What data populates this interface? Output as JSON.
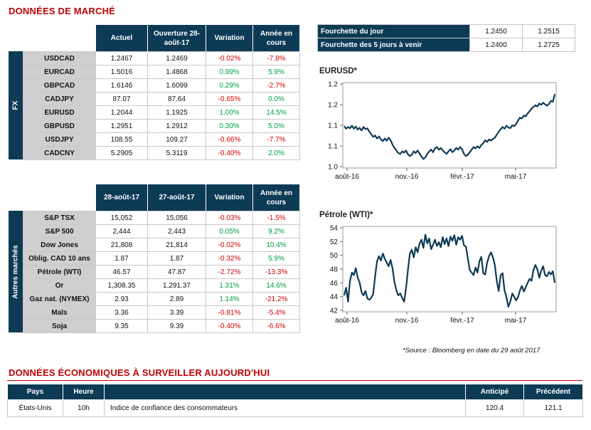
{
  "market_title": "DONNÉES DE MARCHÉ",
  "fx": {
    "side_label": "FX",
    "headers": [
      "Actuel",
      "Ouverture 28-août-17",
      "Variation",
      "Année en cours"
    ],
    "rows": [
      {
        "name": "USDCAD",
        "current": "1.2467",
        "open": "1.2469",
        "change": "-0.02%",
        "ytd": "-7.8%"
      },
      {
        "name": "EURCAD",
        "current": "1.5016",
        "open": "1.4868",
        "change": "0.99%",
        "ytd": "5.9%"
      },
      {
        "name": "GBPCAD",
        "current": "1.6146",
        "open": "1.6099",
        "change": "0.29%",
        "ytd": "-2.7%"
      },
      {
        "name": "CADJPY",
        "current": "87.07",
        "open": "87.64",
        "change": "-0.65%",
        "ytd": "0.0%"
      },
      {
        "name": "EURUSD",
        "current": "1.2044",
        "open": "1.1925",
        "change": "1.00%",
        "ytd": "14.5%"
      },
      {
        "name": "GBPUSD",
        "current": "1.2951",
        "open": "1.2912",
        "change": "0.30%",
        "ytd": "5.0%"
      },
      {
        "name": "USDJPY",
        "current": "108.55",
        "open": "109.27",
        "change": "-0.66%",
        "ytd": "-7.7%"
      },
      {
        "name": "CADCNY",
        "current": "5.2905",
        "open": "5.3119",
        "change": "-0.40%",
        "ytd": "2.0%"
      }
    ]
  },
  "other": {
    "side_label": "Autres marchés",
    "headers": [
      "28-août-17",
      "27-août-17",
      "Variation",
      "Année en cours"
    ],
    "rows": [
      {
        "name": "S&P TSX",
        "current": "15,052",
        "open": "15,056",
        "change": "-0.03%",
        "ytd": "-1.5%"
      },
      {
        "name": "S&P 500",
        "current": "2,444",
        "open": "2,443",
        "change": "0.05%",
        "ytd": "9.2%"
      },
      {
        "name": "Dow Jones",
        "current": "21,808",
        "open": "21,814",
        "change": "-0.02%",
        "ytd": "10.4%"
      },
      {
        "name": "Oblig. CAD 10 ans",
        "current": "1.87",
        "open": "1.87",
        "change": "-0.32%",
        "ytd": "5.9%"
      },
      {
        "name": "Pétrole (WTI)",
        "current": "46.57",
        "open": "47.87",
        "change": "-2.72%",
        "ytd": "-13.3%"
      },
      {
        "name": "Or",
        "current": "1,308.35",
        "open": "1,291.37",
        "change": "1.31%",
        "ytd": "14.6%"
      },
      {
        "name": "Gaz nat. (NYMEX)",
        "current": "2.93",
        "open": "2.89",
        "change": "1.14%",
        "ytd": "-21.2%"
      },
      {
        "name": "Maïs",
        "current": "3.36",
        "open": "3.39",
        "change": "-0.81%",
        "ytd": "-5.4%"
      },
      {
        "name": "Soja",
        "current": "9.35",
        "open": "9.39",
        "change": "-0.40%",
        "ytd": "-6.6%"
      }
    ]
  },
  "ranges": {
    "rows": [
      {
        "label": "Fourchette du jour",
        "low": "1.2450",
        "high": "1.2515"
      },
      {
        "label": "Fourchette des 5 jours à venir",
        "low": "1.2400",
        "high": "1.2725"
      }
    ]
  },
  "source_note": "*Source : Bloomberg en date du  29 août 2017",
  "econ": {
    "title": "DONNÉES ÉCONOMIQUES À SURVEILLER AUJOURD'HUI",
    "headers": [
      "Pays",
      "Heure",
      "",
      "Anticipé",
      "Précédent"
    ],
    "rows": [
      {
        "country": "États-Unis",
        "time": "10h",
        "indicator": "Indice de confiance des consommateurs",
        "expected": "120.4",
        "previous": "121.1"
      }
    ]
  },
  "chart_data": [
    {
      "type": "line",
      "title": "EURUSD*",
      "x_tick_labels": [
        "août-16",
        "nov.-16",
        "févr.-17",
        "mai-17"
      ],
      "y_tick_labels": [
        "1.0",
        "1.1",
        "1.1",
        "1.2",
        "1.2"
      ],
      "ylim": [
        1.025,
        1.225
      ],
      "series": [
        {
          "values": [
            1.123,
            1.117,
            1.121,
            1.118,
            1.124,
            1.117,
            1.122,
            1.115,
            1.119,
            1.113,
            1.121,
            1.116,
            1.118,
            1.11,
            1.104,
            1.098,
            1.101,
            1.094,
            1.099,
            1.092,
            1.088,
            1.094,
            1.089,
            1.096,
            1.09,
            1.08,
            1.072,
            1.066,
            1.06,
            1.058,
            1.064,
            1.061,
            1.066,
            1.057,
            1.053,
            1.056,
            1.064,
            1.06,
            1.066,
            1.059,
            1.052,
            1.046,
            1.05,
            1.058,
            1.064,
            1.068,
            1.062,
            1.071,
            1.074,
            1.068,
            1.072,
            1.066,
            1.062,
            1.058,
            1.064,
            1.069,
            1.062,
            1.066,
            1.072,
            1.068,
            1.074,
            1.069,
            1.058,
            1.053,
            1.056,
            1.062,
            1.068,
            1.074,
            1.071,
            1.076,
            1.072,
            1.079,
            1.083,
            1.09,
            1.086,
            1.092,
            1.089,
            1.093,
            1.096,
            1.103,
            1.11,
            1.116,
            1.121,
            1.117,
            1.124,
            1.12,
            1.118,
            1.125,
            1.123,
            1.128,
            1.136,
            1.143,
            1.141,
            1.148,
            1.146,
            1.153,
            1.158,
            1.164,
            1.168,
            1.172,
            1.169,
            1.176,
            1.173,
            1.178,
            1.174,
            1.171,
            1.175,
            1.182,
            1.18,
            1.198
          ]
        }
      ]
    },
    {
      "type": "line",
      "title": "Pétrole (WTI)*",
      "x_tick_labels": [
        "août-16",
        "nov.-16",
        "févr.-17",
        "mai-17"
      ],
      "y_tick_labels": [
        "42",
        "44",
        "46",
        "48",
        "50",
        "52",
        "54"
      ],
      "ylim": [
        42,
        55.5
      ],
      "series": [
        {
          "values": [
            44.6,
            45.8,
            43.6,
            46.9,
            48.2,
            47.8,
            48.9,
            47.4,
            46.6,
            45.1,
            44.6,
            45.3,
            44.1,
            43.9,
            44.2,
            44.8,
            47.6,
            50.0,
            50.8,
            50.1,
            51.2,
            50.4,
            49.8,
            49.2,
            50.2,
            48.9,
            46.7,
            45.4,
            44.6,
            44.9,
            44.2,
            43.6,
            45.7,
            48.6,
            51.2,
            51.8,
            50.6,
            52.2,
            51.4,
            52.8,
            53.4,
            52.1,
            54.2,
            52.8,
            53.6,
            51.9,
            52.6,
            53.4,
            52.4,
            53.0,
            52.2,
            53.8,
            52.7,
            53.6,
            52.4,
            53.9,
            53.2,
            54.1,
            52.6,
            53.8,
            53.4,
            54.0,
            52.5,
            52.3,
            50.5,
            48.6,
            48.2,
            47.8,
            49.0,
            48.2,
            50.0,
            50.7,
            48.1,
            47.9,
            49.8,
            50.8,
            51.4,
            50.6,
            49.4,
            46.9,
            45.3,
            47.8,
            48.1,
            45.4,
            44.3,
            42.8,
            43.6,
            44.9,
            44.4,
            43.8,
            44.3,
            45.4,
            46.1,
            45.2,
            45.9,
            46.6,
            47.2,
            46.9,
            48.6,
            49.4,
            48.7,
            47.4,
            48.5,
            49.2,
            47.8,
            47.6,
            48.3,
            47.9,
            48.4,
            46.6
          ]
        }
      ]
    }
  ]
}
